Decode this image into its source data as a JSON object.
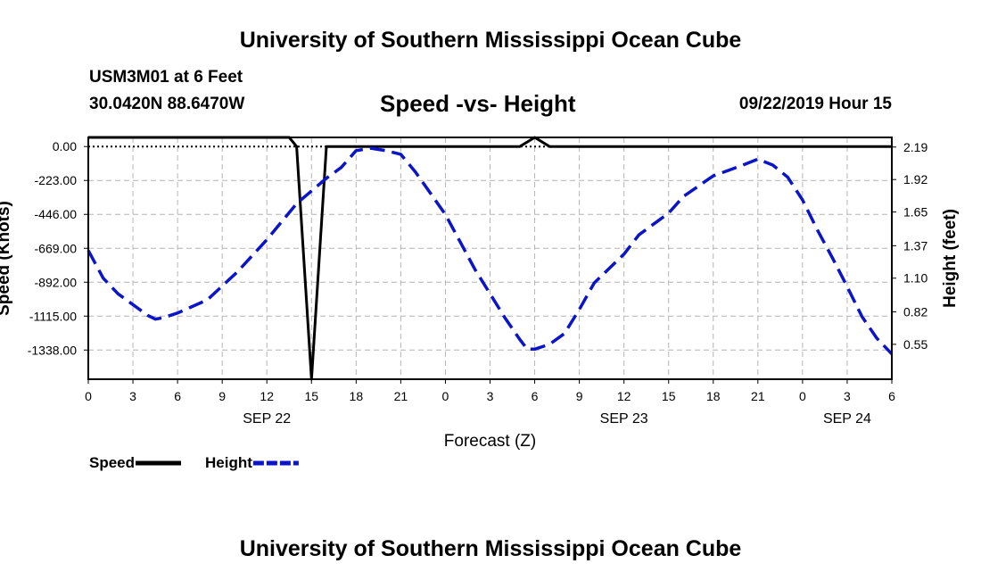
{
  "header": {
    "title": "University of Southern Mississippi Ocean Cube"
  },
  "footer": {
    "title": "University of Southern Mississippi Ocean Cube"
  },
  "station": {
    "name": "USM3M01 at 6 Feet",
    "coords": "30.0420N 88.6470W",
    "datetime": "09/22/2019 Hour 15"
  },
  "colors": {
    "speed": "#000000",
    "height": "#0a14c8",
    "grid": "#b4b4b4"
  },
  "chart_data": {
    "type": "line",
    "title": "Speed -vs- Height",
    "xlabel": "Forecast (Z)",
    "ylabel_left": "Speed (Knots)",
    "ylabel_right": "Height (feet)",
    "x_range_hours": [
      0,
      54
    ],
    "x_ticks": [
      {
        "h": 0,
        "label": "0"
      },
      {
        "h": 3,
        "label": "3"
      },
      {
        "h": 6,
        "label": "6"
      },
      {
        "h": 9,
        "label": "9"
      },
      {
        "h": 12,
        "label": "12"
      },
      {
        "h": 15,
        "label": "15"
      },
      {
        "h": 18,
        "label": "18"
      },
      {
        "h": 21,
        "label": "21"
      },
      {
        "h": 24,
        "label": "0"
      },
      {
        "h": 27,
        "label": "3"
      },
      {
        "h": 30,
        "label": "6"
      },
      {
        "h": 33,
        "label": "9"
      },
      {
        "h": 36,
        "label": "12"
      },
      {
        "h": 39,
        "label": "15"
      },
      {
        "h": 42,
        "label": "18"
      },
      {
        "h": 45,
        "label": "21"
      },
      {
        "h": 48,
        "label": "0"
      },
      {
        "h": 51,
        "label": "3"
      },
      {
        "h": 54,
        "label": "6"
      }
    ],
    "date_labels": [
      {
        "h": 12,
        "label": "SEP 22"
      },
      {
        "h": 36,
        "label": "SEP 23"
      },
      {
        "h": 51,
        "label": "SEP 24"
      }
    ],
    "y_left": {
      "range": [
        -1530,
        60
      ],
      "ticks": [
        "0.00",
        "-223.00",
        "-446.00",
        "-669.00",
        "-892.00",
        "-1115.00",
        "-1338.00"
      ],
      "tick_values": [
        0,
        -223,
        -446,
        -669,
        -892,
        -1115,
        -1338
      ]
    },
    "y_right": {
      "range": [
        0.26,
        2.27
      ],
      "ticks": [
        "2.19",
        "1.92",
        "1.65",
        "1.37",
        "1.10",
        "0.82",
        "0.55"
      ],
      "tick_values": [
        2.19,
        1.92,
        1.65,
        1.37,
        1.1,
        0.82,
        0.55
      ]
    },
    "series": [
      {
        "name": "Speed",
        "axis": "left",
        "style": "solid",
        "x": [
          0,
          12,
          12.5,
          13,
          13.5,
          14,
          15,
          16,
          16.5,
          29,
          30,
          31,
          54
        ],
        "values": [
          60,
          60,
          60,
          60,
          60,
          0,
          -1530,
          0,
          0,
          0,
          60,
          0,
          0
        ]
      },
      {
        "name": "Height",
        "axis": "right",
        "style": "dashed",
        "x": [
          0,
          1,
          2,
          3,
          4,
          4.5,
          5,
          6,
          8,
          10,
          12,
          14,
          16,
          17,
          18,
          19,
          20,
          21,
          22,
          24,
          26,
          28,
          29,
          29.5,
          30,
          31,
          32,
          33,
          34,
          36,
          37,
          39,
          40,
          42,
          44,
          45,
          46,
          47,
          48,
          49,
          50,
          51,
          52,
          53,
          54
        ],
        "values": [
          1.33,
          1.1,
          0.97,
          0.88,
          0.79,
          0.76,
          0.77,
          0.81,
          0.92,
          1.15,
          1.42,
          1.72,
          1.93,
          2.02,
          2.16,
          2.18,
          2.16,
          2.13,
          1.98,
          1.63,
          1.17,
          0.77,
          0.59,
          0.51,
          0.51,
          0.55,
          0.64,
          0.84,
          1.06,
          1.3,
          1.46,
          1.64,
          1.78,
          1.95,
          2.04,
          2.09,
          2.04,
          1.94,
          1.75,
          1.5,
          1.27,
          1.03,
          0.78,
          0.6,
          0.47
        ]
      }
    ],
    "legend": [
      {
        "name": "Speed",
        "style": "solid"
      },
      {
        "name": "Height",
        "style": "dashed"
      }
    ]
  }
}
